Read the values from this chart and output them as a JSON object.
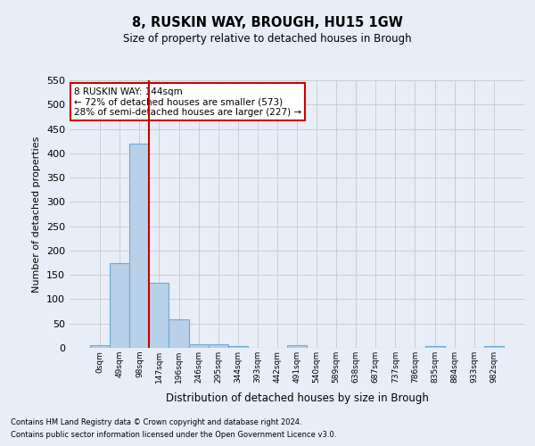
{
  "title": "8, RUSKIN WAY, BROUGH, HU15 1GW",
  "subtitle": "Size of property relative to detached houses in Brough",
  "xlabel": "Distribution of detached houses by size in Brough",
  "ylabel": "Number of detached properties",
  "footnote1": "Contains HM Land Registry data © Crown copyright and database right 2024.",
  "footnote2": "Contains public sector information licensed under the Open Government Licence v3.0.",
  "annotation_line1": "8 RUSKIN WAY: 144sqm",
  "annotation_line2": "← 72% of detached houses are smaller (573)",
  "annotation_line3": "28% of semi-detached houses are larger (227) →",
  "bar_values": [
    5,
    175,
    420,
    133,
    58,
    8,
    8,
    3,
    0,
    0,
    5,
    0,
    0,
    0,
    0,
    0,
    0,
    3,
    0,
    0,
    3
  ],
  "bin_labels": [
    "0sqm",
    "49sqm",
    "98sqm",
    "147sqm",
    "196sqm",
    "246sqm",
    "295sqm",
    "344sqm",
    "393sqm",
    "442sqm",
    "491sqm",
    "540sqm",
    "589sqm",
    "638sqm",
    "687sqm",
    "737sqm",
    "786sqm",
    "835sqm",
    "884sqm",
    "933sqm",
    "982sqm"
  ],
  "bar_color": "#b8d0e8",
  "bar_edge_color": "#6aaad4",
  "vline_x": 2.5,
  "vline_color": "#cc0000",
  "ylim": [
    0,
    550
  ],
  "yticks": [
    0,
    50,
    100,
    150,
    200,
    250,
    300,
    350,
    400,
    450,
    500,
    550
  ],
  "grid_color": "#cccccc",
  "bg_color": "#e8eef8",
  "annotation_box_color": "#ffffff",
  "annotation_box_edge": "#cc0000"
}
